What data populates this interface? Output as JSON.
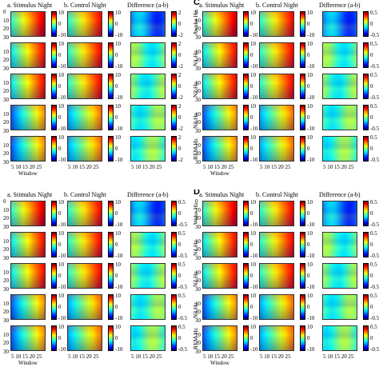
{
  "panels": [
    {
      "label": "",
      "col_titles": [
        "a. Stimulus Night",
        "b. Control Night",
        "Difference (a-b)"
      ],
      "row_labels": [
        "",
        "",
        "",
        "",
        ""
      ],
      "cbar_ticks_main": [
        "10",
        "0",
        "-10"
      ],
      "cbar_ticks_diff": [
        "2",
        "0",
        "-2"
      ],
      "y_ticks": [
        "0",
        "10",
        "20",
        "30"
      ],
      "x_ticks": "5 10 15 20 25",
      "x_label": "Window"
    },
    {
      "label": "C",
      "col_titles": [
        "a. Stimulus Night",
        "b. Control Night",
        "Difference (a-b)"
      ],
      "row_labels": [
        "Awake Hz",
        "N1 Hz",
        "N2 Hz",
        "N3 Hz",
        "REM Hz"
      ],
      "cbar_ticks_main": [
        "10",
        "0",
        "-10"
      ],
      "cbar_ticks_diff": [
        "0.5",
        "0",
        "-0.5"
      ],
      "y_ticks": [
        "0",
        "10",
        "20",
        "30"
      ],
      "x_ticks": "5 10 15 20 25",
      "x_label": "Window"
    },
    {
      "label": "",
      "col_titles": [
        "a. Stimulus Night",
        "b. Control Night",
        "Difference (a-b)"
      ],
      "row_labels": [
        "",
        "",
        "",
        "",
        ""
      ],
      "cbar_ticks_main": [
        "10",
        "0",
        "-10"
      ],
      "cbar_ticks_diff": [
        "0.5",
        "0",
        "-0.5"
      ],
      "y_ticks": [
        "0",
        "10",
        "20",
        "30"
      ],
      "x_ticks": "5 10 15 20 25",
      "x_label": "Window"
    },
    {
      "label": "D",
      "col_titles": [
        "a. Stimulus Night",
        "b. Control Night",
        "Difference (a-b)"
      ],
      "row_labels": [
        "Wake Hz",
        "N1 Hz",
        "N2 Hz",
        "N3 Hz",
        "REM Hz"
      ],
      "cbar_ticks_main": [
        "10",
        "0",
        "-10"
      ],
      "cbar_ticks_diff": [
        "0.5",
        "0",
        "-0.5"
      ],
      "y_ticks": [
        "0",
        "10",
        "20",
        "30"
      ],
      "x_ticks": "5 10 15 20 25",
      "x_label": "Window"
    }
  ],
  "colors": {
    "jet_low": "#00008f",
    "jet_mid": "#80ff80",
    "jet_high": "#800000"
  }
}
